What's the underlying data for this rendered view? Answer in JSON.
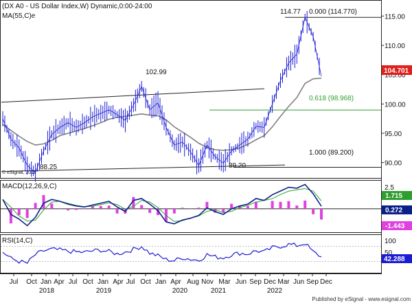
{
  "header": {
    "title": "(DX A0 - US Dollar Index,W) Dynamic,0:00-24:00",
    "ma_label": "MA(55,C)e",
    "copyright": "© eSignal, 2011"
  },
  "footer": {
    "published": "Published by eSignal - www.esignal.com"
  },
  "colors": {
    "price": "#1b1bd6",
    "ma": "#7f7f7f",
    "fib": "#2e9e2e",
    "current_price_bg": "#e0201a",
    "macd_line": "#0a1f8a",
    "macd_signal": "#2e9e2e",
    "macd_hist": "#e040e0",
    "rsi": "#1b1bd6"
  },
  "chart_data": [
    {
      "type": "line",
      "panel": "price",
      "title": "(DX A0 - US Dollar Index,W) Dynamic,0:00-24:00",
      "y_ticks": [
        "115.00",
        "110.00",
        "105.00",
        "100.00",
        "95.00",
        "90.00"
      ],
      "ylim": [
        87.5,
        117.5
      ],
      "x": [
        "2017-06",
        "2017-09",
        "2017-12",
        "2018-01",
        "2018-03",
        "2018-05",
        "2018-07",
        "2018-10",
        "2018-11",
        "2019-01",
        "2019-03",
        "2019-05",
        "2019-08",
        "2019-10",
        "2019-12",
        "2020-01",
        "2020-02",
        "2020-03",
        "2020-03",
        "2020-04",
        "2020-06",
        "2020-08",
        "2020-10",
        "2020-11",
        "2021-01",
        "2021-03",
        "2021-04",
        "2021-05",
        "2021-06",
        "2021-08",
        "2021-10",
        "2021-12",
        "2022-02",
        "2022-04",
        "2022-05",
        "2022-07",
        "2022-08",
        "2022-09",
        "2022-10",
        "2022-11"
      ],
      "series": [
        {
          "name": "",
          "values": [
            97.5,
            94.0,
            92.5,
            89.5,
            88.3,
            92.0,
            94.8,
            96.0,
            96.8,
            96.0,
            96.8,
            97.8,
            98.4,
            99.0,
            98.2,
            97.2,
            99.8,
            102.99,
            99.0,
            100.2,
            96.0,
            93.0,
            93.5,
            91.8,
            89.5,
            93.0,
            91.0,
            89.9,
            92.0,
            93.0,
            94.0,
            96.2,
            96.0,
            100.0,
            104.0,
            107.0,
            108.5,
            114.77,
            111.5,
            104.7
          ]
        },
        {
          "name": "MA(55,C)e",
          "values": [
            96.5,
            95.5,
            94.5,
            93.6,
            93.0,
            93.2,
            93.8,
            94.6,
            95.0,
            95.4,
            95.8,
            96.3,
            96.8,
            97.4,
            97.7,
            97.9,
            98.1,
            98.3,
            98.1,
            98.0,
            97.3,
            96.1,
            95.2,
            94.3,
            93.3,
            92.6,
            92.2,
            92.1,
            92.2,
            92.5,
            93.1,
            93.9,
            94.6,
            96.1,
            97.9,
            99.6,
            101.1,
            103.5,
            104.3,
            104.4
          ]
        }
      ],
      "annotations": [
        {
          "text": "102.99",
          "value": 102.99
        },
        {
          "text": "88.25",
          "value": 88.25
        },
        {
          "text": "89.20",
          "value": 89.2
        },
        {
          "text": "114.77",
          "value": 114.77
        },
        {
          "text": "0.000 (114.770)",
          "value": 114.77
        },
        {
          "text": "0.618 (98.968)",
          "value": 98.968
        },
        {
          "text": "1.000 (89.200)",
          "value": 89.2
        }
      ],
      "current_value": "104.701"
    },
    {
      "type": "line",
      "panel": "macd",
      "title": "MACD(12,26,9,C)",
      "y_ticks": [
        "2.5"
      ],
      "ylim": [
        -2.5,
        3.0
      ],
      "values_labels": [
        "1.715",
        "0.272",
        "-1.443"
      ]
    },
    {
      "type": "line",
      "panel": "rsi",
      "title": "RSI(14,C)",
      "y_ticks": [
        "100",
        "50"
      ],
      "ylim": [
        0,
        100
      ],
      "current_value": "42.288"
    }
  ],
  "x_axis": {
    "months": [
      "Jul",
      "Oct",
      "Jan",
      "Apr",
      "Jul",
      "Oct",
      "Jan",
      "Apr",
      "Jul",
      "Oct",
      "Jan",
      "Apr",
      "Aug",
      "Nov",
      "Mar",
      "Jun",
      "Sep",
      "Dec",
      "Mar",
      "Jun",
      "Sep",
      "Dec"
    ],
    "years": [
      "2018",
      "2019",
      "2020",
      "2021",
      "2022"
    ]
  }
}
